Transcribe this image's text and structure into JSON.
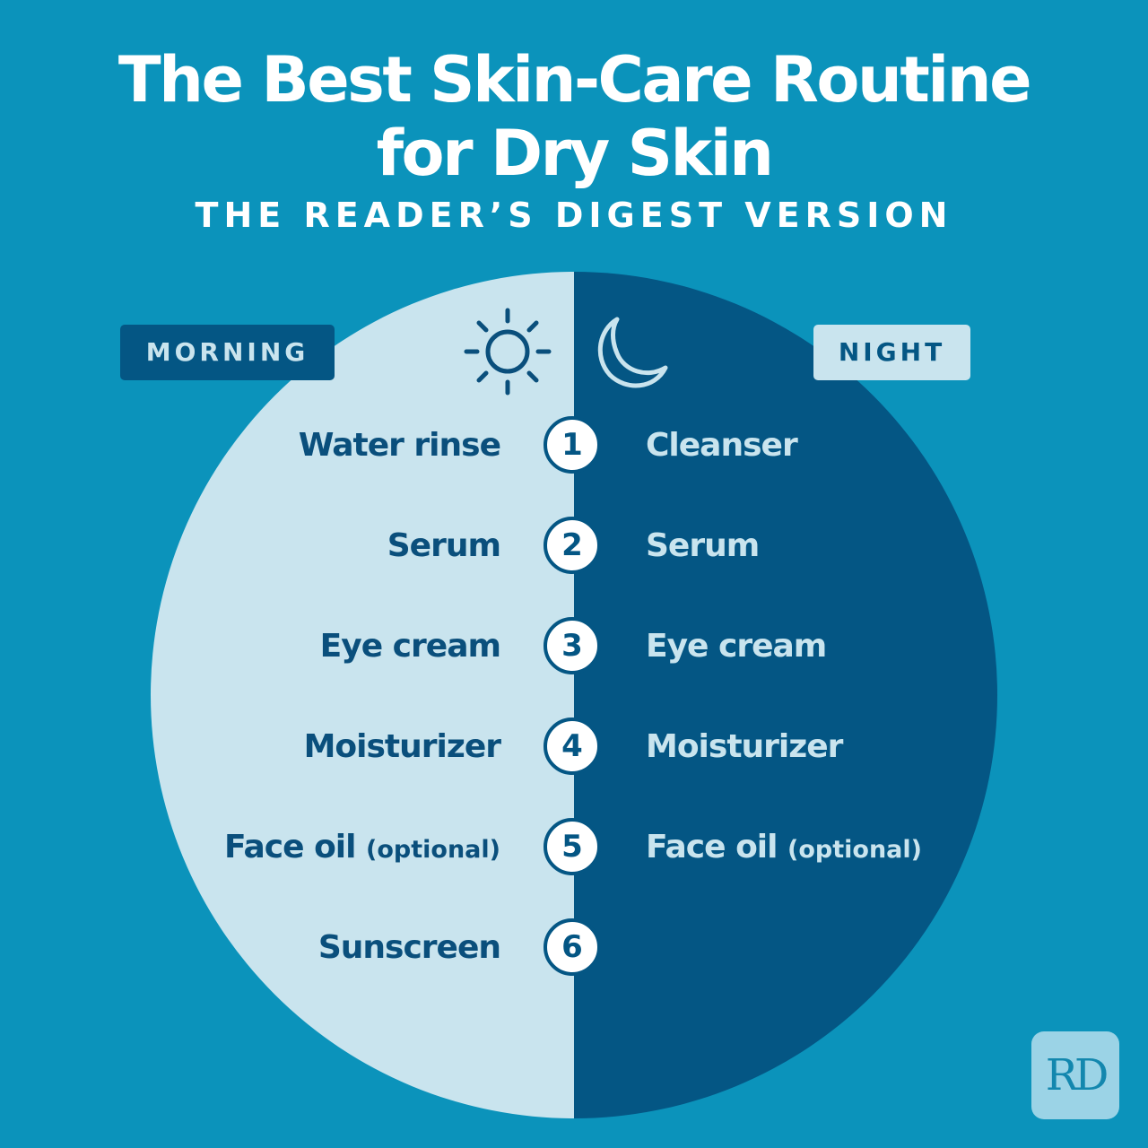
{
  "title": {
    "line1": "The Best Skin-Care Routine",
    "line2": "for Dry Skin"
  },
  "subtitle": "THE READER’S DIGEST VERSION",
  "morning": {
    "label": "MORNING",
    "icon": "sun-icon",
    "steps": [
      {
        "text": "Water rinse",
        "note": ""
      },
      {
        "text": "Serum",
        "note": ""
      },
      {
        "text": "Eye cream",
        "note": ""
      },
      {
        "text": "Moisturizer",
        "note": ""
      },
      {
        "text": "Face oil",
        "note": "(optional)"
      },
      {
        "text": "Sunscreen",
        "note": ""
      }
    ]
  },
  "night": {
    "label": "NIGHT",
    "icon": "moon-icon",
    "steps": [
      {
        "text": "Cleanser",
        "note": ""
      },
      {
        "text": "Serum",
        "note": ""
      },
      {
        "text": "Eye cream",
        "note": ""
      },
      {
        "text": "Moisturizer",
        "note": ""
      },
      {
        "text": "Face oil",
        "note": "(optional)"
      }
    ]
  },
  "numbers": [
    "1",
    "2",
    "3",
    "4",
    "5",
    "6"
  ],
  "logo": "RD",
  "colors": {
    "background": "#0b93bb",
    "morning": "#c9e4ee",
    "night": "#045684"
  }
}
